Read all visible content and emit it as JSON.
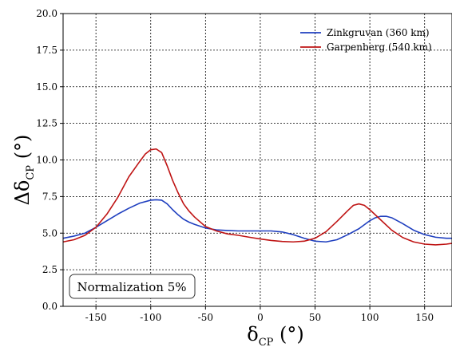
{
  "chart_data": {
    "type": "line",
    "title": "",
    "xlabel": {
      "main": "δ",
      "sub": "CP",
      "unit": " (°)"
    },
    "ylabel": {
      "main": "Δδ",
      "sub": "CP",
      "unit": " (°)"
    },
    "xlim": [
      -180,
      175
    ],
    "ylim": [
      0,
      20
    ],
    "xticks": [
      -150,
      -100,
      -50,
      0,
      50,
      100,
      150
    ],
    "xtick_labels": [
      "-150",
      "-100",
      "-50",
      "0",
      "50",
      "100",
      "150"
    ],
    "yticks": [
      0,
      2.5,
      5,
      7.5,
      10,
      12.5,
      15,
      17.5,
      20
    ],
    "ytick_labels": [
      "0.0",
      "2.5",
      "5.0",
      "7.5",
      "10.0",
      "12.5",
      "15.0",
      "17.5",
      "20.0"
    ],
    "grid": true,
    "legend_position": "top-right",
    "annotation": "Normalization 5%",
    "series": [
      {
        "name": "Zinkgruvan (360 km)",
        "color": "#1f3fbf",
        "x": [
          -180,
          -170,
          -160,
          -150,
          -140,
          -130,
          -120,
          -110,
          -100,
          -95,
          -90,
          -85,
          -80,
          -75,
          -70,
          -65,
          -60,
          -50,
          -40,
          -30,
          -20,
          -10,
          0,
          10,
          20,
          30,
          40,
          50,
          60,
          70,
          80,
          90,
          100,
          105,
          110,
          115,
          120,
          130,
          140,
          150,
          160,
          170,
          175
        ],
        "y": [
          4.65,
          4.8,
          5.0,
          5.4,
          5.85,
          6.3,
          6.7,
          7.05,
          7.25,
          7.28,
          7.25,
          7.0,
          6.6,
          6.25,
          5.95,
          5.75,
          5.6,
          5.35,
          5.22,
          5.18,
          5.15,
          5.15,
          5.15,
          5.15,
          5.08,
          4.9,
          4.65,
          4.45,
          4.4,
          4.55,
          4.9,
          5.3,
          5.85,
          6.05,
          6.15,
          6.15,
          6.05,
          5.65,
          5.2,
          4.9,
          4.72,
          4.65,
          4.65
        ]
      },
      {
        "name": "Garpenberg (540 km)",
        "color": "#bf1414",
        "x": [
          -180,
          -170,
          -160,
          -150,
          -140,
          -130,
          -120,
          -110,
          -105,
          -100,
          -95,
          -90,
          -85,
          -80,
          -75,
          -70,
          -65,
          -60,
          -50,
          -40,
          -30,
          -20,
          -10,
          0,
          10,
          20,
          30,
          40,
          50,
          60,
          70,
          80,
          85,
          90,
          95,
          100,
          110,
          120,
          130,
          140,
          150,
          160,
          170,
          175
        ],
        "y": [
          4.4,
          4.55,
          4.85,
          5.4,
          6.3,
          7.45,
          8.85,
          9.9,
          10.4,
          10.7,
          10.75,
          10.5,
          9.6,
          8.6,
          7.75,
          7.0,
          6.5,
          6.1,
          5.45,
          5.15,
          4.95,
          4.85,
          4.72,
          4.6,
          4.5,
          4.43,
          4.4,
          4.45,
          4.65,
          5.1,
          5.8,
          6.55,
          6.9,
          7.0,
          6.9,
          6.6,
          5.9,
          5.2,
          4.7,
          4.4,
          4.25,
          4.2,
          4.25,
          4.3
        ]
      }
    ]
  }
}
